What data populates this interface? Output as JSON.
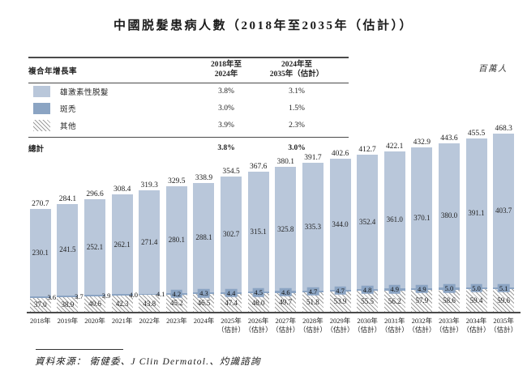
{
  "title": "中國脱髮患病人數（2018年至2035年（估計））",
  "unit_label": "百萬人",
  "cagr_table": {
    "row_header": "複合年增長率",
    "col_headers": [
      [
        "2018年至",
        "2024年"
      ],
      [
        "2024年至",
        "2035年（估計）"
      ]
    ],
    "rows": [
      {
        "label": "雄激素性脱髮",
        "swatch": "solid-light",
        "values": [
          "3.8%",
          "3.1%"
        ]
      },
      {
        "label": "斑禿",
        "swatch": "solid-dark",
        "values": [
          "3.0%",
          "1.5%"
        ]
      },
      {
        "label": "其他",
        "swatch": "hatch",
        "values": [
          "3.9%",
          "2.3%"
        ]
      }
    ],
    "total": {
      "label": "總計",
      "values": [
        "3.8%",
        "3.0%"
      ]
    }
  },
  "chart_data": {
    "type": "bar",
    "stacked": true,
    "title": "中國脱髮患病人數（2018年至2035年（估計））",
    "ylabel": "百萬人",
    "ylim": [
      0,
      500
    ],
    "grid": false,
    "legend_position": "top-left-table",
    "categories": [
      "2018年",
      "2019年",
      "2020年",
      "2021年",
      "2022年",
      "2023年",
      "2024年",
      "2025年\n（估計）",
      "2026年\n（估計）",
      "2027年\n（估計）",
      "2028年\n（估計）",
      "2029年\n（估計）",
      "2030年\n（估計）",
      "2031年\n（估計）",
      "2032年\n（估計）",
      "2033年\n（估計）",
      "2034年\n（估計）",
      "2035年\n（估計）"
    ],
    "series": [
      {
        "name": "雄激素性脱髮",
        "color": "#b9c7da",
        "values": [
          230.1,
          241.5,
          252.1,
          262.1,
          271.4,
          280.1,
          288.1,
          302.7,
          315.1,
          325.8,
          335.3,
          344.0,
          352.4,
          361.0,
          370.1,
          380.0,
          391.1,
          403.7
        ]
      },
      {
        "name": "斑禿",
        "color": "#8ba4c3",
        "values": [
          3.6,
          3.7,
          3.9,
          4.0,
          4.1,
          4.2,
          4.3,
          4.4,
          4.5,
          4.6,
          4.7,
          4.7,
          4.8,
          4.9,
          4.9,
          5.0,
          5.0,
          5.1
        ]
      },
      {
        "name": "其他",
        "pattern": "diagonal-hatch",
        "color": "#9c9c9c",
        "values": [
          37.0,
          38.9,
          40.6,
          42.3,
          43.8,
          45.2,
          46.5,
          47.4,
          48.0,
          49.7,
          51.8,
          53.9,
          55.5,
          56.2,
          57.9,
          58.6,
          59.4,
          59.6
        ]
      }
    ],
    "totals": [
      270.7,
      284.1,
      296.6,
      308.4,
      319.3,
      329.5,
      338.9,
      354.5,
      367.6,
      380.1,
      391.7,
      402.6,
      412.7,
      422.1,
      432.9,
      443.6,
      455.5,
      468.3
    ]
  },
  "source": "資料來源： 衛健委、J Clin Dermatol.、灼識諮詢"
}
